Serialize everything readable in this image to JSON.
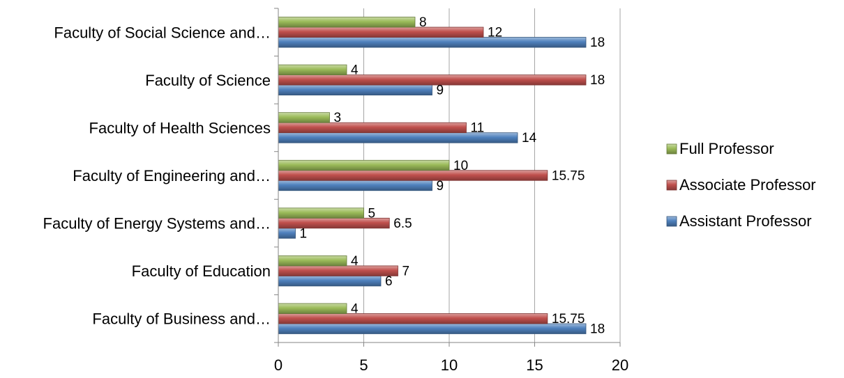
{
  "chart_data": {
    "type": "bar",
    "orientation": "horizontal",
    "categories": [
      "Faculty of Business and…",
      "Faculty of Education",
      "Faculty of Energy Systems and…",
      "Faculty of Engineering and…",
      "Faculty of Health Sciences",
      "Faculty of Science",
      "Faculty of Social Science and…"
    ],
    "series": [
      {
        "name": "Assistant Professor",
        "color": "#4F81BD",
        "values": [
          18,
          6,
          1,
          9,
          14,
          9,
          18
        ],
        "labels": [
          "18",
          "6",
          "1",
          "9",
          "14",
          "9",
          "18"
        ]
      },
      {
        "name": "Associate Professor",
        "color": "#C0504D",
        "values": [
          15.75,
          7,
          6.5,
          15.75,
          11,
          18,
          12
        ],
        "labels": [
          "15.75",
          "7",
          "6.5",
          "15.75",
          "11",
          "18",
          "12"
        ]
      },
      {
        "name": "Full Professor",
        "color": "#9BBB59",
        "values": [
          4,
          4,
          5,
          10,
          3,
          4,
          8
        ],
        "labels": [
          "4",
          "4",
          "5",
          "10",
          "3",
          "4",
          "8"
        ]
      }
    ],
    "xlim": [
      0,
      20
    ],
    "xticks": [
      "0",
      "5",
      "10",
      "15",
      "20"
    ],
    "grid": true,
    "legend": "right",
    "legend_order": [
      "Full Professor",
      "Associate Professor",
      "Assistant Professor"
    ]
  }
}
